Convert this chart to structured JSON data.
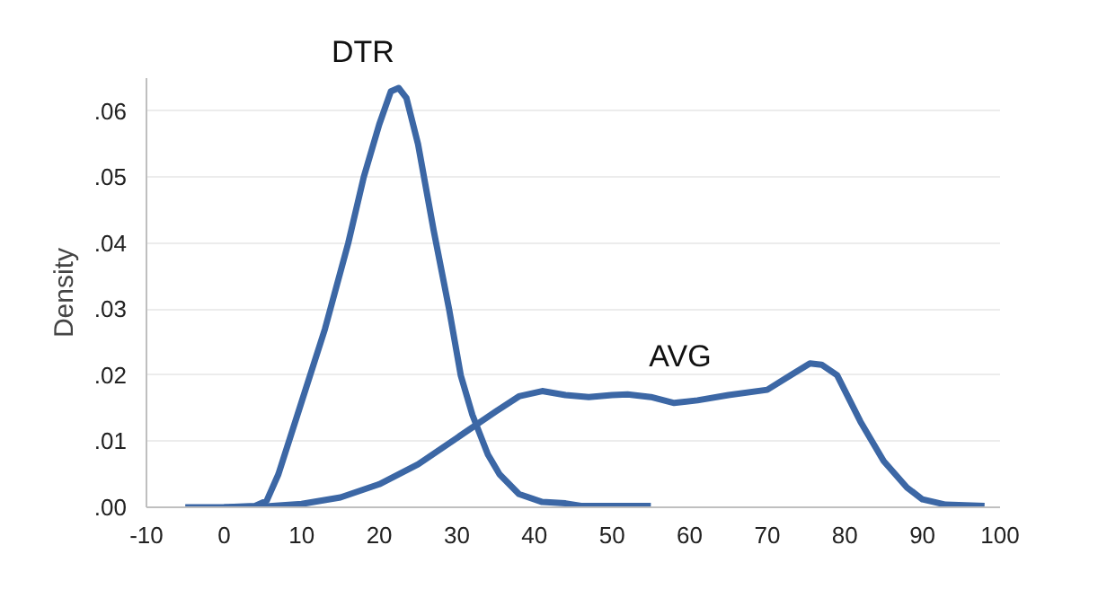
{
  "chart_data": {
    "type": "line",
    "ylabel": "Density",
    "xlim": [
      -10,
      100
    ],
    "ylim": [
      0,
      0.065
    ],
    "xticks": [
      -10,
      0,
      10,
      20,
      30,
      40,
      50,
      60,
      70,
      80,
      90,
      100
    ],
    "yticks": [
      {
        "value": 0,
        "label": ".00"
      },
      {
        "value": 0.01,
        "label": ".01"
      },
      {
        "value": 0.02,
        "label": ".02"
      },
      {
        "value": 0.03,
        "label": ".03"
      },
      {
        "value": 0.04,
        "label": ".04"
      },
      {
        "value": 0.05,
        "label": ".05"
      },
      {
        "value": 0.06,
        "label": ".06"
      }
    ],
    "grid": "y",
    "line_style": "solid",
    "annotations": [
      "DTR",
      "AVG"
    ],
    "series": [
      {
        "color": "#3c67a5",
        "x": [
          -5,
          0,
          4,
          5.5,
          7,
          10,
          13,
          16,
          18,
          20,
          21.5,
          22.5,
          23.5,
          25,
          27,
          29,
          30.5,
          32,
          34,
          35.5,
          38,
          41,
          44,
          46,
          50,
          55
        ],
        "values": [
          0,
          0,
          0.0002,
          0.001,
          0.005,
          0.016,
          0.027,
          0.04,
          0.05,
          0.058,
          0.063,
          0.0635,
          0.062,
          0.055,
          0.042,
          0.03,
          0.02,
          0.014,
          0.008,
          0.005,
          0.002,
          0.0008,
          0.0006,
          0.0002,
          0.0002,
          0.0002
        ]
      },
      {
        "color": "#3c67a5",
        "x": [
          0,
          5,
          10,
          15,
          20,
          25,
          30,
          35,
          38,
          41,
          44,
          47,
          50,
          52,
          55,
          58,
          61,
          65,
          70,
          73,
          75.5,
          77,
          79,
          82,
          85,
          88,
          90,
          93,
          98
        ],
        "values": [
          0,
          0.0001,
          0.0005,
          0.0015,
          0.0035,
          0.0065,
          0.0105,
          0.0145,
          0.0168,
          0.0176,
          0.017,
          0.0167,
          0.017,
          0.0171,
          0.0167,
          0.0158,
          0.0162,
          0.017,
          0.0178,
          0.02,
          0.0218,
          0.0216,
          0.02,
          0.013,
          0.007,
          0.003,
          0.0012,
          0.0004,
          0.0002
        ]
      }
    ]
  }
}
